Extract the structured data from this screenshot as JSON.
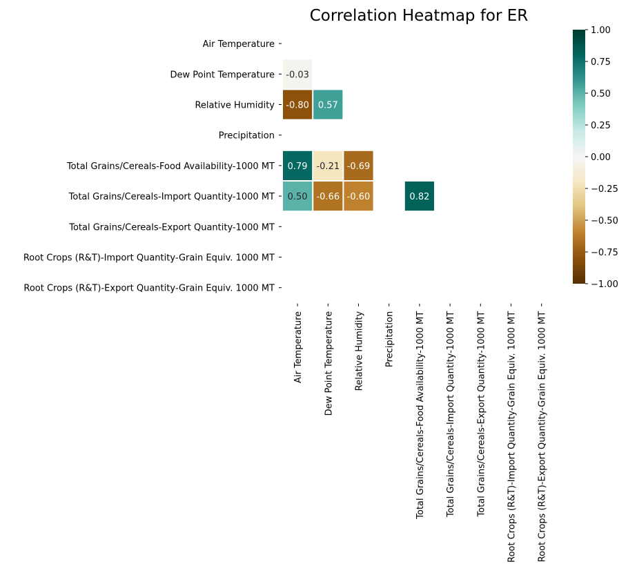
{
  "chart_data": {
    "type": "heatmap",
    "title": "Correlation Heatmap for ER",
    "xlabel": "",
    "ylabel": "",
    "row_labels": [
      "Air Temperature",
      "Dew Point Temperature",
      "Relative Humidity",
      "Precipitation",
      "Total Grains/Cereals-Food Availability-1000 MT",
      "Total Grains/Cereals-Import Quantity-1000 MT",
      "Total Grains/Cereals-Export Quantity-1000 MT",
      "Root Crops (R&T)-Import Quantity-Grain Equiv. 1000 MT",
      "Root Crops (R&T)-Export Quantity-Grain Equiv. 1000 MT"
    ],
    "col_labels": [
      "Air Temperature",
      "Dew Point Temperature",
      "Relative Humidity",
      "Precipitation",
      "Total Grains/Cereals-Food Availability-1000 MT",
      "Total Grains/Cereals-Import Quantity-1000 MT",
      "Total Grains/Cereals-Export Quantity-1000 MT",
      "Root Crops (R&T)-Import Quantity-Grain Equiv. 1000 MT",
      "Root Crops (R&T)-Export Quantity-Grain Equiv. 1000 MT"
    ],
    "cells": [
      {
        "row": 1,
        "col": 0,
        "value": -0.03,
        "label": "-0.03"
      },
      {
        "row": 2,
        "col": 0,
        "value": -0.8,
        "label": "-0.80"
      },
      {
        "row": 2,
        "col": 1,
        "value": 0.57,
        "label": "0.57"
      },
      {
        "row": 4,
        "col": 0,
        "value": 0.79,
        "label": "0.79"
      },
      {
        "row": 4,
        "col": 1,
        "value": -0.21,
        "label": "-0.21"
      },
      {
        "row": 4,
        "col": 2,
        "value": -0.69,
        "label": "-0.69"
      },
      {
        "row": 5,
        "col": 0,
        "value": 0.5,
        "label": "0.50"
      },
      {
        "row": 5,
        "col": 1,
        "value": -0.66,
        "label": "-0.66"
      },
      {
        "row": 5,
        "col": 2,
        "value": -0.6,
        "label": "-0.60"
      },
      {
        "row": 5,
        "col": 4,
        "value": 0.82,
        "label": "0.82"
      }
    ],
    "colorbar": {
      "min": -1.0,
      "max": 1.0,
      "ticks": [
        "1.00",
        "0.75",
        "0.50",
        "0.25",
        "0.00",
        "−0.25",
        "−0.50",
        "−0.75",
        "−1.00"
      ],
      "colormap": "BrBG"
    },
    "grid": false,
    "legend": "right"
  }
}
